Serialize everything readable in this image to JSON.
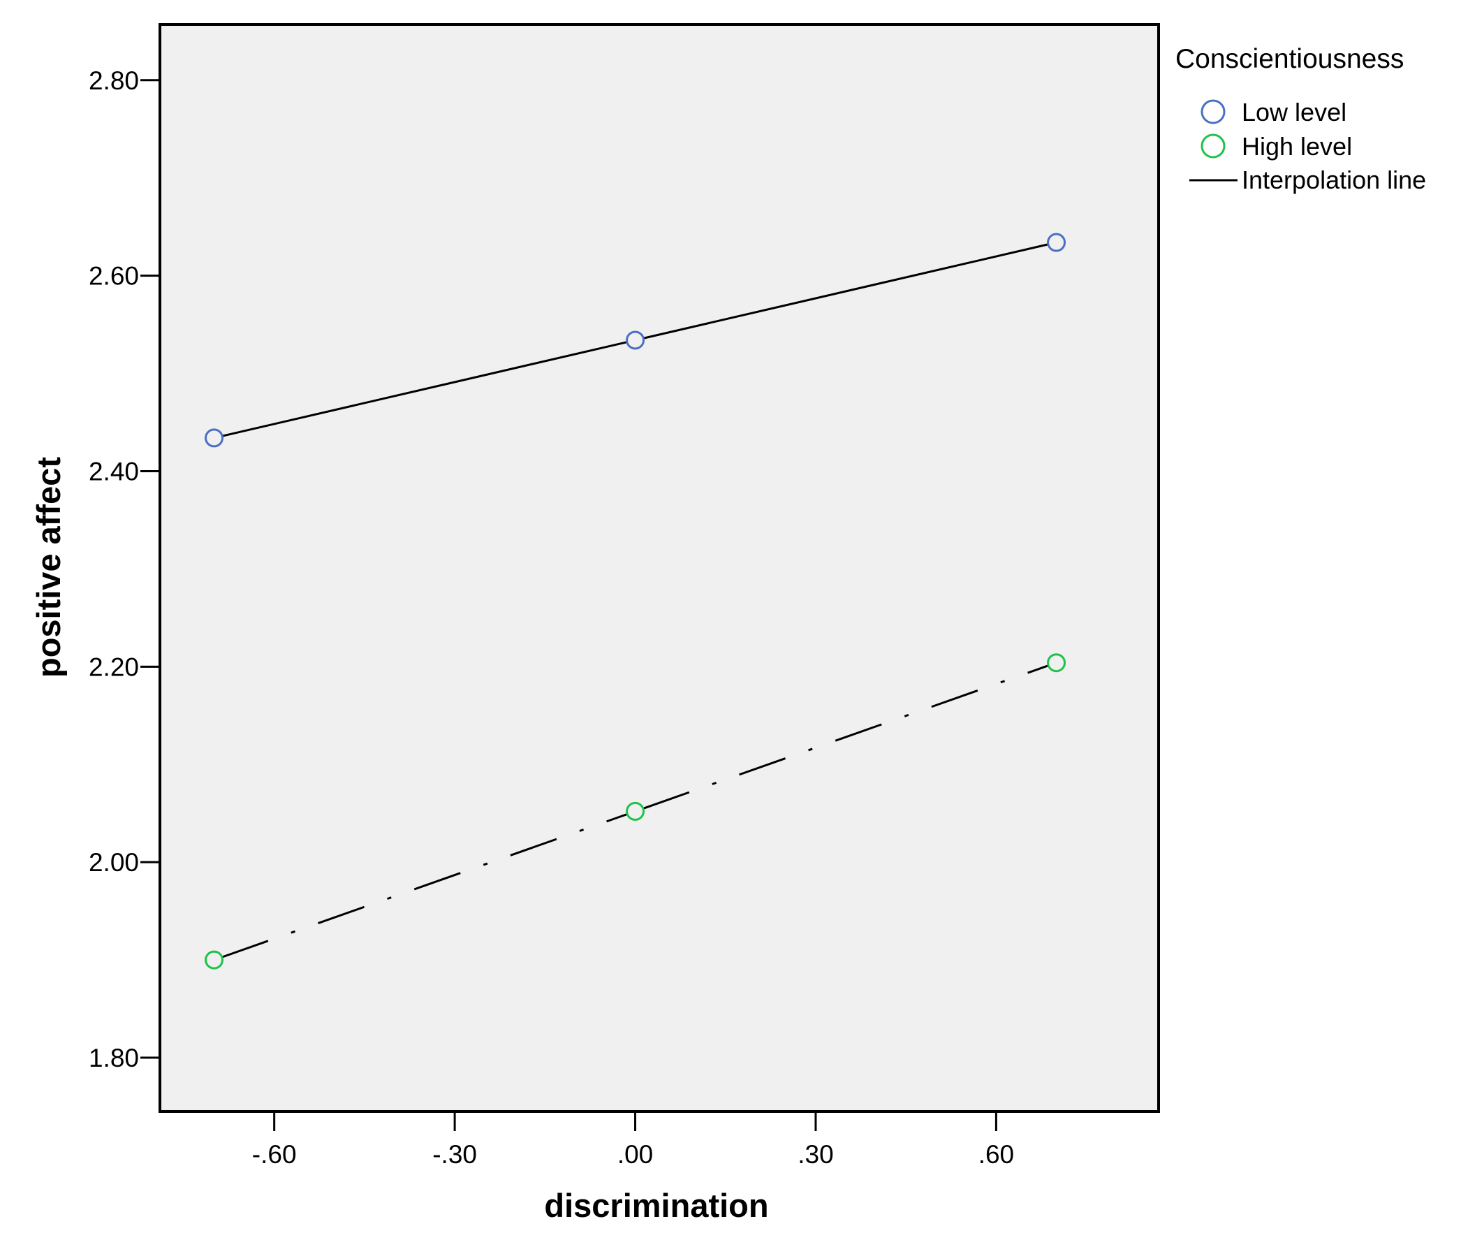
{
  "chart_data": {
    "type": "line",
    "xlabel": "discrimination",
    "ylabel": "positive affect",
    "xlim": [
      -0.79,
      0.87
    ],
    "ylim": [
      1.745,
      2.857
    ],
    "xticks": [
      -0.6,
      -0.3,
      0.0,
      0.3,
      0.6
    ],
    "xtick_labels": [
      "-.60",
      "-.30",
      ".00",
      ".30",
      ".60"
    ],
    "yticks": [
      1.8,
      2.0,
      2.2,
      2.4,
      2.6,
      2.8
    ],
    "ytick_labels": [
      "1.80",
      "2.00",
      "2.20",
      "2.40",
      "2.60",
      "2.80"
    ],
    "grid": false,
    "legend": {
      "title": "Conscientiousness",
      "placement": "right-top",
      "entries": [
        "Low level",
        "High level",
        "Interpolation line"
      ]
    },
    "series": [
      {
        "name": "Low level",
        "color": "#4a6fc4",
        "line_style": "solid",
        "x": [
          -0.7,
          0.0,
          0.7
        ],
        "y": [
          2.434,
          2.534,
          2.634
        ]
      },
      {
        "name": "High level",
        "color": "#1fc24a",
        "line_style": "dash-dot",
        "x": [
          -0.7,
          0.0,
          0.7
        ],
        "y": [
          1.9,
          2.052,
          2.204
        ]
      }
    ],
    "colors": {
      "plot_background": "#f0f0f0",
      "frame": "#000000",
      "interpolation_line": "#000000"
    }
  }
}
